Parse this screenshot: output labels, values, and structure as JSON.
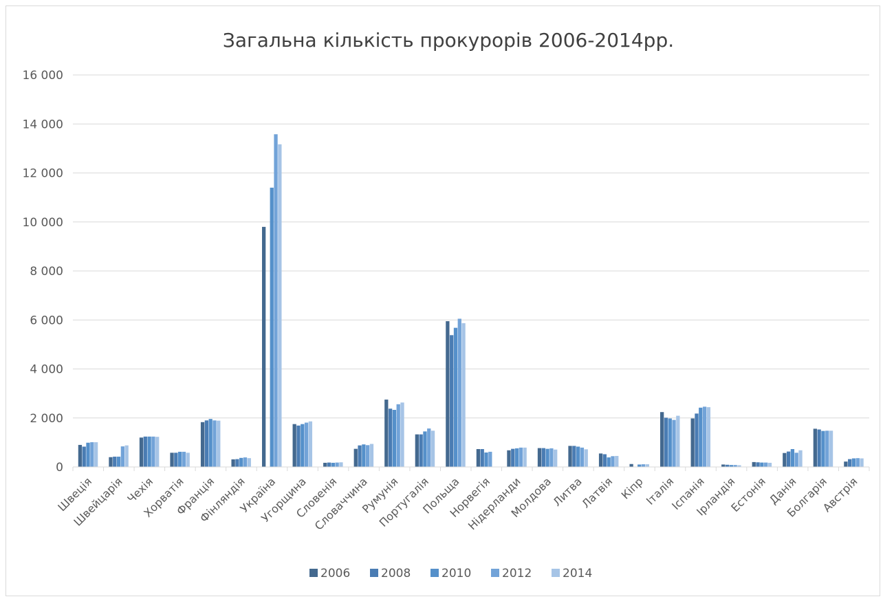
{
  "chart_data": {
    "type": "bar",
    "title": "Загальна кількість прокурорів 2006-2014рр.",
    "xlabel": "",
    "ylabel": "",
    "ylim": [
      0,
      16000
    ],
    "yticks": [
      0,
      2000,
      4000,
      6000,
      8000,
      10000,
      12000,
      14000,
      16000
    ],
    "ytick_labels": [
      "0",
      "2 000",
      "4 000",
      "6 000",
      "8 000",
      "10 000",
      "12 000",
      "14 000",
      "16 000"
    ],
    "grid": true,
    "legend_position": "bottom",
    "categories": [
      "Швеція",
      "Швейцарія",
      "Чехія",
      "Хорватія",
      "Франція",
      "Фінляндія",
      "Україна",
      "Угорщина",
      "Словенія",
      "Словаччина",
      "Румунія",
      "Португалія",
      "Польща",
      "Норвегія",
      "Нідерланди",
      "Молдова",
      "Литва",
      "Латвія",
      "Кіпр",
      "Італія",
      "Іспанія",
      "Ірландія",
      "Естонія",
      "Данія",
      "Болгарія",
      "Австрія"
    ],
    "series": [
      {
        "name": "2006",
        "color": "#44698f",
        "values": [
          900,
          400,
          1200,
          580,
          1830,
          310,
          9800,
          1750,
          170,
          740,
          2750,
          1330,
          5950,
          730,
          680,
          770,
          860,
          550,
          120,
          2240,
          1980,
          100,
          200,
          570,
          1560,
          220
        ]
      },
      {
        "name": "2008",
        "color": "#4a7cb3",
        "values": [
          830,
          420,
          1240,
          580,
          1900,
          320,
          0,
          1690,
          180,
          880,
          2380,
          1330,
          5380,
          730,
          740,
          770,
          860,
          520,
          0,
          2010,
          2180,
          90,
          190,
          630,
          1530,
          320
        ]
      },
      {
        "name": "2010",
        "color": "#5590ca",
        "values": [
          990,
          420,
          1240,
          620,
          1960,
          370,
          11400,
          1750,
          170,
          920,
          2330,
          1450,
          5680,
          590,
          760,
          740,
          830,
          390,
          100,
          1980,
          2420,
          80,
          180,
          730,
          1470,
          350
        ]
      },
      {
        "name": "2012",
        "color": "#72a3d8",
        "values": [
          1010,
          840,
          1240,
          620,
          1900,
          390,
          13580,
          1810,
          180,
          890,
          2560,
          1570,
          6050,
          620,
          790,
          760,
          790,
          440,
          110,
          1920,
          2460,
          80,
          180,
          580,
          1480,
          360
        ]
      },
      {
        "name": "2014",
        "color": "#a6c4e6",
        "values": [
          1010,
          880,
          1230,
          580,
          1890,
          360,
          13170,
          1860,
          190,
          940,
          2630,
          1480,
          5870,
          0,
          790,
          710,
          720,
          450,
          110,
          2090,
          2440,
          70,
          170,
          680,
          1480,
          350
        ]
      }
    ]
  }
}
